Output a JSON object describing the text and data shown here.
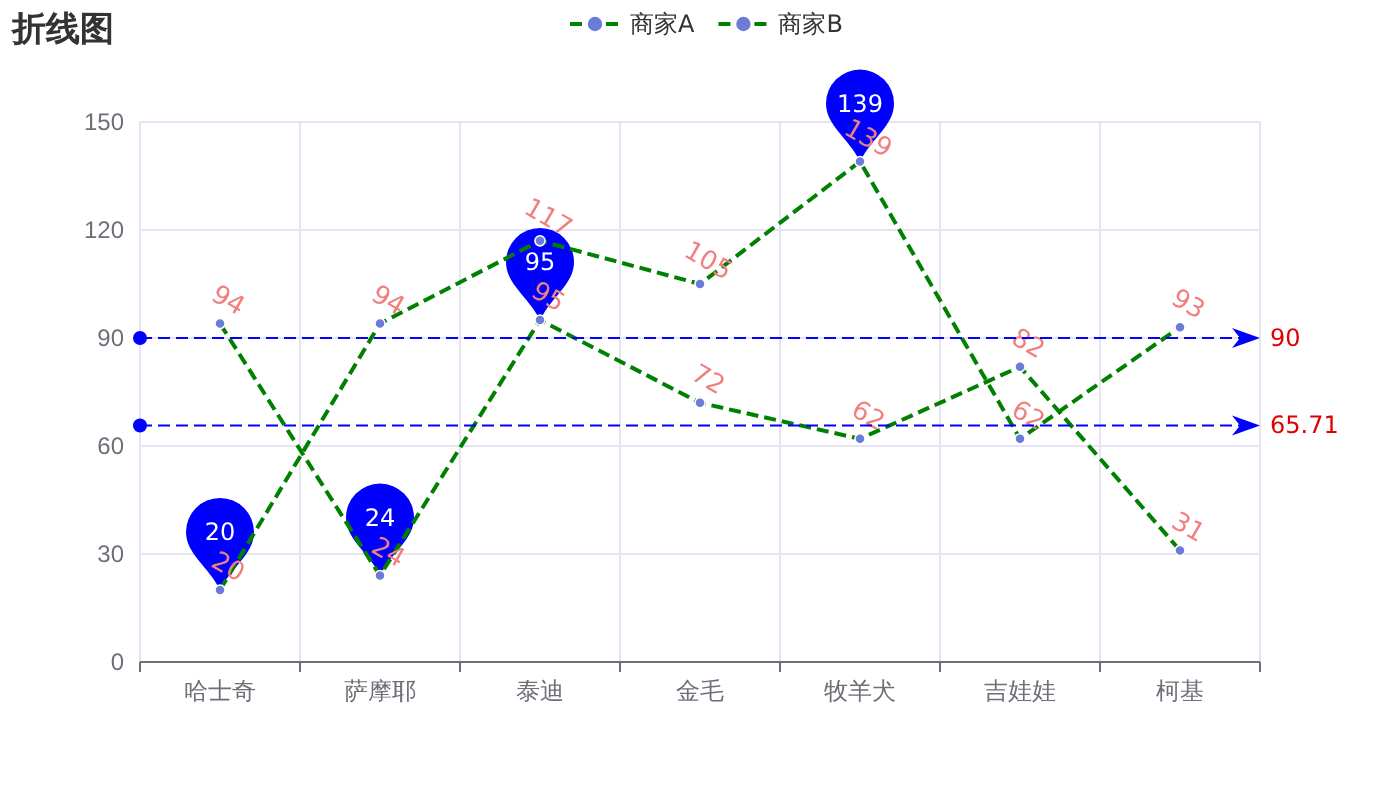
{
  "chart_data": {
    "type": "line",
    "title": "折线图",
    "categories": [
      "哈士奇",
      "萨摩耶",
      "泰迪",
      "金毛",
      "牧羊犬",
      "吉娃娃",
      "柯基"
    ],
    "series": [
      {
        "name": "商家A",
        "color": "#008000",
        "values": [
          94,
          24,
          95,
          72,
          62,
          82,
          31
        ]
      },
      {
        "name": "商家B",
        "color": "#008000",
        "values": [
          20,
          94,
          117,
          105,
          139,
          62,
          93
        ]
      }
    ],
    "ylim": [
      0,
      150
    ],
    "yticks": [
      0,
      30,
      60,
      90,
      120,
      150
    ],
    "grid": true,
    "legend": "top",
    "marker": "circle",
    "line_style": "dashed",
    "data_labels": true,
    "ref_lines": [
      {
        "axis": "y",
        "value": 90,
        "label": "90",
        "color": "#0000ff",
        "line_style": "dashed"
      },
      {
        "axis": "y",
        "value": 65.71,
        "label": "65.71",
        "color": "#0000ff",
        "line_style": "dashed"
      }
    ],
    "annotations": [
      {
        "text": "20",
        "x": "哈士奇",
        "y": 20
      },
      {
        "text": "24",
        "x": "萨摩耶",
        "y": 24
      },
      {
        "text": "95",
        "x": "泰迪",
        "y": 95
      },
      {
        "text": "139",
        "x": "牧羊犬",
        "y": 139
      }
    ]
  }
}
